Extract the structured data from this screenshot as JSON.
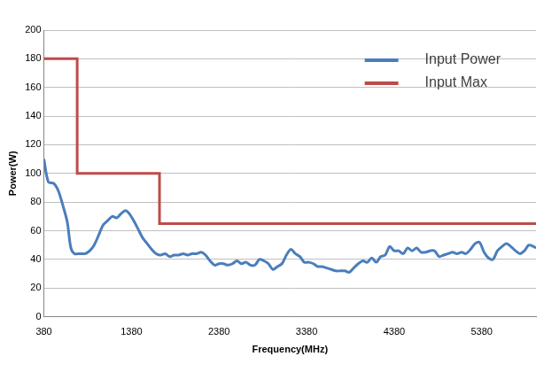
{
  "chart_data": {
    "type": "line",
    "x_label": "Frequency(MHz)",
    "y_label": "Power(W)",
    "xlim": [
      380,
      6000
    ],
    "xticks": [
      380,
      1380,
      2380,
      3380,
      4380,
      5380
    ],
    "ylim": [
      0,
      200
    ],
    "yticks": [
      0,
      20,
      40,
      60,
      80,
      100,
      120,
      140,
      160,
      180,
      200
    ],
    "grid": true,
    "legend": "upper right",
    "series": [
      {
        "name": "Input Power",
        "color": "#4a7ebb",
        "x": [
          380,
          431,
          493,
          544,
          595,
          647,
          688,
          729,
          790,
          852,
          903,
          954,
          1006,
          1057,
          1108,
          1160,
          1211,
          1262,
          1313,
          1354,
          1406,
          1457,
          1508,
          1560,
          1611,
          1662,
          1713,
          1765,
          1816,
          1867,
          1918,
          1970,
          2021,
          2072,
          2124,
          2175,
          2226,
          2277,
          2329,
          2380,
          2431,
          2483,
          2534,
          2585,
          2636,
          2688,
          2739,
          2790,
          2841,
          2893,
          2944,
          2995,
          3047,
          3098,
          3149,
          3200,
          3252,
          3303,
          3354,
          3406,
          3457,
          3508,
          3559,
          3611,
          3662,
          3713,
          3764,
          3816,
          3867,
          3918,
          3970,
          4021,
          4072,
          4124,
          4175,
          4226,
          4277,
          4329,
          4380,
          4431,
          4483,
          4534,
          4585,
          4636,
          4688,
          4739,
          4790,
          4841,
          4893,
          4944,
          4995,
          5047,
          5098,
          5149,
          5200,
          5252,
          5303,
          5354,
          5406,
          5457,
          5508,
          5559,
          5611,
          5662,
          5713,
          5765,
          5816,
          5867,
          5918,
          5970,
          6000
        ],
        "values": [
          110,
          94,
          93,
          88,
          78,
          66,
          48,
          44,
          44,
          44,
          46,
          50,
          57,
          64,
          67,
          70,
          69,
          72,
          74,
          72,
          67,
          61,
          55,
          51,
          47,
          44,
          43,
          44,
          42,
          43,
          43,
          44,
          43,
          44,
          44,
          45,
          43,
          39,
          36,
          37,
          37,
          36,
          37,
          39,
          37,
          38,
          36,
          36,
          40,
          39,
          37,
          33,
          35,
          37,
          43,
          47,
          44,
          42,
          38,
          38,
          37,
          35,
          35,
          34,
          33,
          32,
          32,
          32,
          31,
          34,
          37,
          39,
          38,
          41,
          38,
          42,
          43,
          49,
          46,
          46,
          44,
          48,
          46,
          48,
          45,
          45,
          46,
          46,
          42,
          43,
          44,
          45,
          44,
          45,
          44,
          47,
          51,
          52,
          45,
          41,
          40,
          46,
          49,
          51,
          49,
          46,
          44,
          46,
          50,
          49,
          48
        ]
      },
      {
        "name": "Input Max",
        "color": "#be4b48",
        "x": [
          380,
          760,
          760,
          1700,
          1700,
          6000
        ],
        "values": [
          180,
          180,
          100,
          100,
          65,
          65
        ]
      }
    ]
  }
}
